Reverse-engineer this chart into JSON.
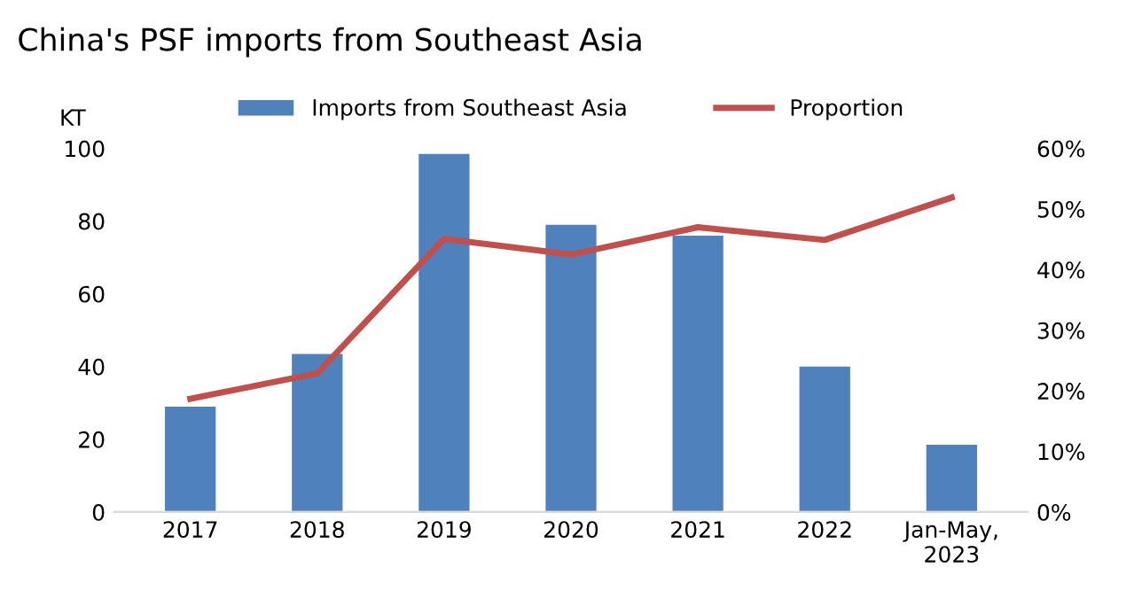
{
  "chart_data": {
    "type": "bar",
    "title": "China's PSF imports from Southeast Asia",
    "ylabel": "KT",
    "categories": [
      "2017",
      "2018",
      "2019",
      "2020",
      "2021",
      "2022",
      "Jan-May,\n2023"
    ],
    "series": [
      {
        "name": "Imports from Southeast Asia",
        "color": "#4f81bd",
        "values": [
          29,
          43.5,
          98.5,
          79,
          76,
          40,
          18.5
        ]
      },
      {
        "name": "Proportion",
        "type": "line",
        "axis": "y2",
        "color": "#c0504d",
        "values": [
          18.7,
          22.9,
          45.1,
          42.5,
          47,
          44.9,
          51.9
        ]
      }
    ],
    "ylim": [
      0,
      100
    ],
    "yticks": [
      0,
      20,
      40,
      60,
      80,
      100
    ],
    "y2lim": [
      0,
      60
    ],
    "y2ticks": [
      {
        "value": 0,
        "label": "0%"
      },
      {
        "value": 10,
        "label": "10%"
      },
      {
        "value": 20,
        "label": "20%"
      },
      {
        "value": 30,
        "label": "30%"
      },
      {
        "value": 40,
        "label": "40%"
      },
      {
        "value": 50,
        "label": "50%"
      },
      {
        "value": 60,
        "label": "60%"
      }
    ],
    "grid": false,
    "legend": "top",
    "marker": "none",
    "line_style": "solid"
  }
}
